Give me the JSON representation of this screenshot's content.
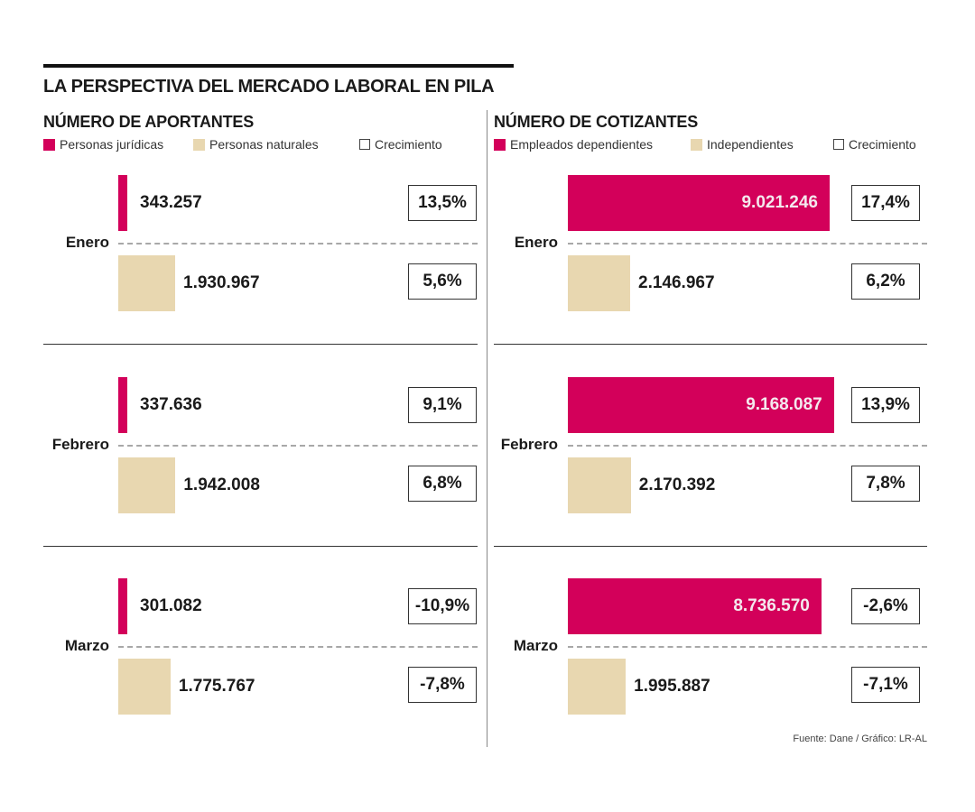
{
  "title": "LA PERSPECTIVA DEL MERCADO LABORAL EN PILA",
  "source": "Fuente: Dane / Gráfico: LR-AL",
  "colors": {
    "pink": "#d3005a",
    "beige": "#e8d7b0"
  },
  "chart_data": [
    {
      "type": "bar",
      "title": "NÚMERO DE APORTANTES",
      "categories": [
        "Enero",
        "Febrero",
        "Marzo"
      ],
      "legend": [
        "Personas jurídicas",
        "Personas naturales",
        "Crecimiento"
      ],
      "series": [
        {
          "name": "Personas jurídicas",
          "values": [
            343257,
            337636,
            301082
          ],
          "labels": [
            "343.257",
            "337.636",
            "301.082"
          ],
          "growth": [
            "13,5%",
            "9,1%",
            "-10,9%"
          ]
        },
        {
          "name": "Personas naturales",
          "values": [
            1930967,
            1942008,
            1775767
          ],
          "labels": [
            "1.930.967",
            "1.942.008",
            "1.775.767"
          ],
          "growth": [
            "5,6%",
            "6,8%",
            "-7,8%"
          ]
        }
      ]
    },
    {
      "type": "bar",
      "title": "NÚMERO DE COTIZANTES",
      "categories": [
        "Enero",
        "Febrero",
        "Marzo"
      ],
      "legend": [
        "Empleados dependientes",
        "Independientes",
        "Crecimiento"
      ],
      "series": [
        {
          "name": "Empleados dependientes",
          "values": [
            9021246,
            9168087,
            8736570
          ],
          "labels": [
            "9.021.246",
            "9.168.087",
            "8.736.570"
          ],
          "growth": [
            "17,4%",
            "13,9%",
            "-2,6%"
          ]
        },
        {
          "name": "Independientes",
          "values": [
            2146967,
            2170392,
            1995887
          ],
          "labels": [
            "2.146.967",
            "2.170.392",
            "1.995.887"
          ],
          "growth": [
            "6,2%",
            "7,8%",
            "-7,1%"
          ]
        }
      ]
    }
  ]
}
